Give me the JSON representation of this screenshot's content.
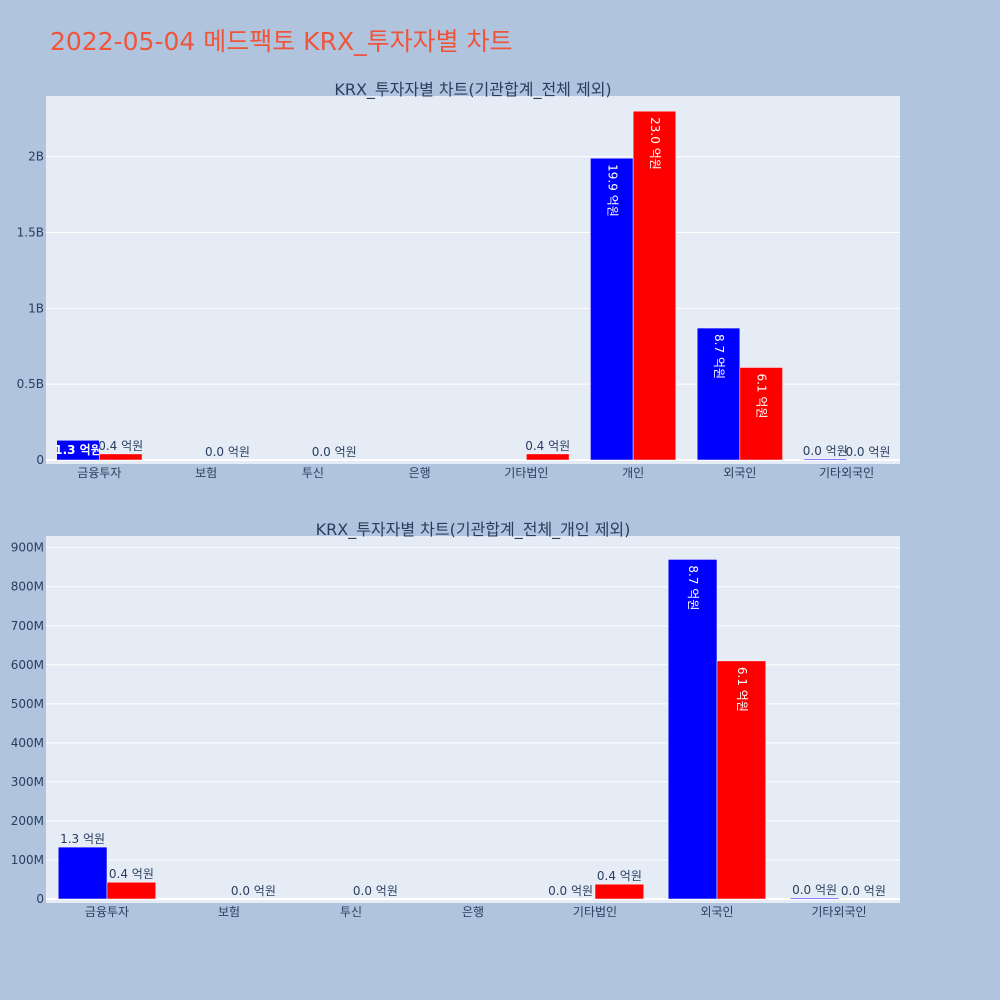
{
  "page": {
    "title": "2022-05-04 메드팩토 KRX_투자자별 차트"
  },
  "colors": {
    "background": "#b0c4de",
    "plot_bg": "#e5ecf6",
    "buy": "#0000ff",
    "sell": "#ff0000",
    "title": "#ef553b"
  },
  "chart_data": [
    {
      "type": "bar",
      "title": "KRX_투자자별 차트(기관합계_전체 제외)",
      "categories": [
        "금융투자",
        "보험",
        "투신",
        "은행",
        "기타법인",
        "개인",
        "외국인",
        "기타외국인"
      ],
      "ylim": [
        0,
        2400000000
      ],
      "y_ticks": [
        0,
        500000000,
        1000000000,
        1500000000,
        2000000000
      ],
      "y_tick_labels": [
        "0",
        "0.5B",
        "1B",
        "1.5B",
        "2B"
      ],
      "grid": true,
      "series": [
        {
          "color": "#0000ff",
          "values": [
            130000000,
            0,
            0,
            0,
            0,
            1990000000,
            870000000,
            1000000
          ],
          "labels": [
            "1.3 억원",
            "",
            "",
            "",
            "",
            "19.9 억원",
            "8.7 억원",
            "0.0 억원"
          ]
        },
        {
          "color": "#ff0000",
          "values": [
            40000000,
            0,
            0,
            0,
            40000000,
            2300000000,
            610000000,
            0
          ],
          "labels": [
            "0.4 억원",
            "0.0 억원",
            "0.0 억원",
            "",
            "0.4 억원",
            "23.0 억원",
            "6.1 억원",
            "0.0 억원"
          ]
        }
      ]
    },
    {
      "type": "bar",
      "title": "KRX_투자자별 차트(기관합계_전체_개인 제외)",
      "categories": [
        "금융투자",
        "보험",
        "투신",
        "은행",
        "기타법인",
        "외국인",
        "기타외국인"
      ],
      "ylim": [
        0,
        930000000
      ],
      "y_ticks": [
        0,
        100000000,
        200000000,
        300000000,
        400000000,
        500000000,
        600000000,
        700000000,
        800000000,
        900000000
      ],
      "y_tick_labels": [
        "0",
        "100M",
        "200M",
        "300M",
        "400M",
        "500M",
        "600M",
        "700M",
        "800M",
        "900M"
      ],
      "grid": true,
      "series": [
        {
          "color": "#0000ff",
          "values": [
            133000000,
            0,
            0,
            0,
            0,
            870000000,
            2000000
          ],
          "labels": [
            "1.3 억원",
            "",
            "",
            "",
            "0.0 억원",
            "8.7 억원",
            "0.0 억원"
          ]
        },
        {
          "color": "#ff0000",
          "values": [
            43000000,
            0,
            0,
            0,
            38000000,
            610000000,
            0
          ],
          "labels": [
            "0.4 억원",
            "0.0 억원",
            "0.0 억원",
            "",
            "0.4 억원",
            "6.1 억원",
            "0.0 억원"
          ]
        }
      ]
    }
  ]
}
